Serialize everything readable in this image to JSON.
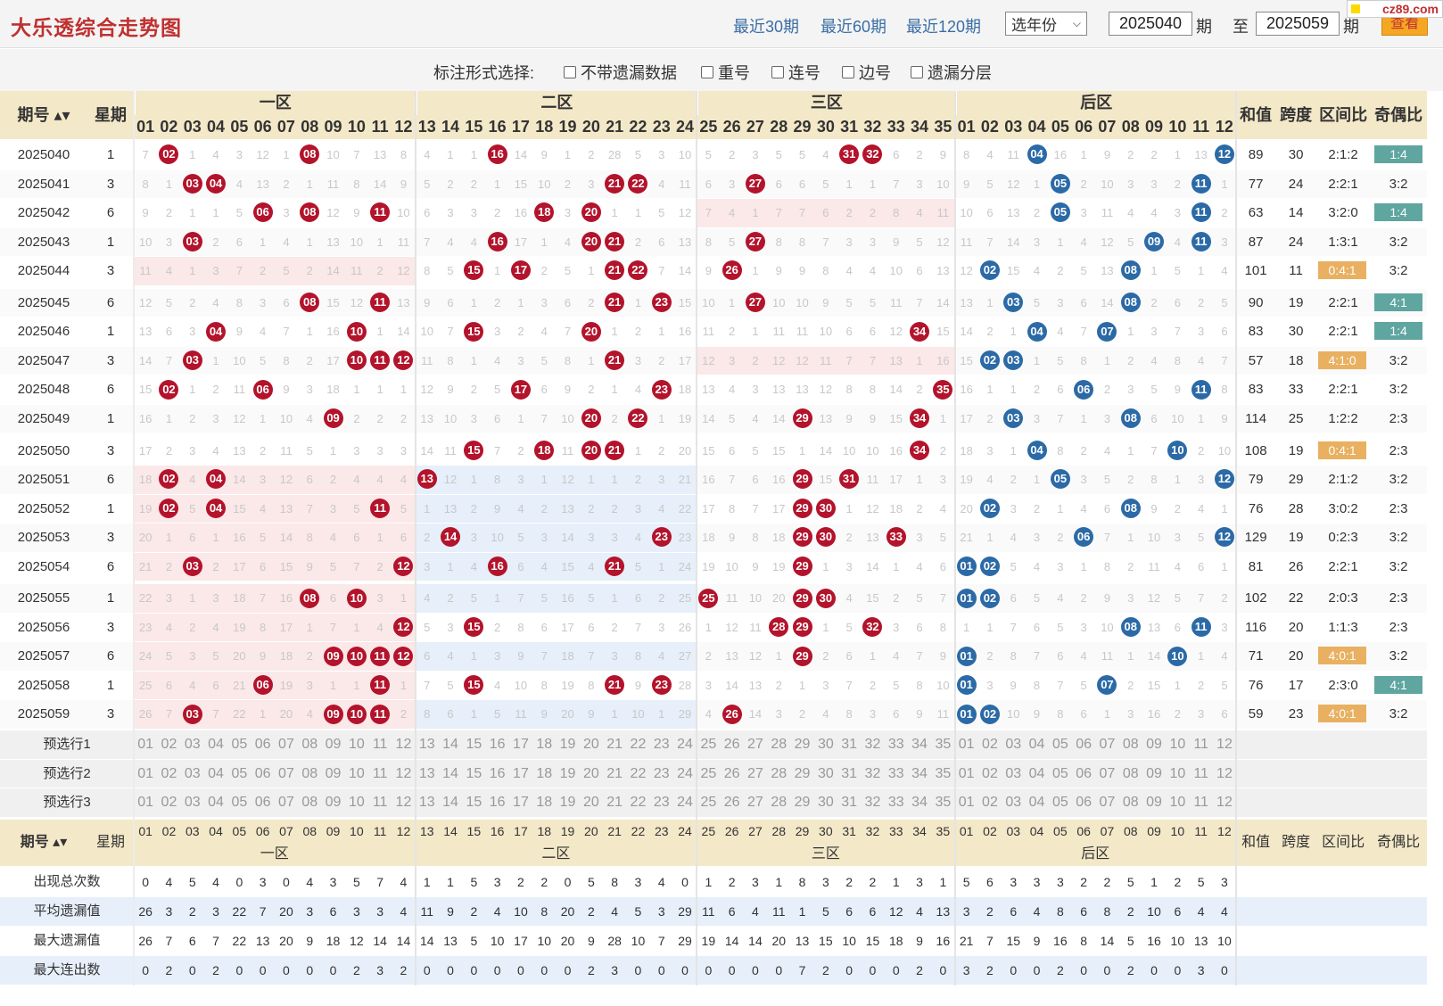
{
  "header": {
    "title": "大乐透综合走势图",
    "quick": [
      "最近30期",
      "最近60期",
      "最近120期"
    ],
    "year_select": "选年份",
    "from_issue": "2025040",
    "to_issue": "2025059",
    "issue_unit": "期",
    "to_label": "至",
    "query_label": "查看",
    "logo": "cz89.com"
  },
  "filters": {
    "label": "标注形式选择:",
    "options": [
      "不带遗漏数据",
      "重号",
      "连号",
      "边号",
      "遗漏分层"
    ]
  },
  "table_headers": {
    "issue": "期号",
    "weekday": "星期",
    "zones": [
      "一区",
      "二区",
      "三区",
      "后区"
    ],
    "sum": "和值",
    "span": "跨度",
    "zone_ratio": "区间比",
    "odd_even": "奇偶比"
  },
  "front_numbers": [
    "01",
    "02",
    "03",
    "04",
    "05",
    "06",
    "07",
    "08",
    "09",
    "10",
    "11",
    "12",
    "13",
    "14",
    "15",
    "16",
    "17",
    "18",
    "19",
    "20",
    "21",
    "22",
    "23",
    "24",
    "25",
    "26",
    "27",
    "28",
    "29",
    "30",
    "31",
    "32",
    "33",
    "34",
    "35"
  ],
  "back_numbers": [
    "01",
    "02",
    "03",
    "04",
    "05",
    "06",
    "07",
    "08",
    "09",
    "10",
    "11",
    "12"
  ],
  "rows": [
    {
      "issue": "2025040",
      "wd": "1",
      "f": [
        7,
        "02",
        1,
        4,
        3,
        12,
        1,
        "08",
        10,
        7,
        13,
        8,
        4,
        1,
        1,
        "16",
        14,
        9,
        1,
        2,
        28,
        5,
        3,
        10,
        5,
        2,
        3,
        5,
        5,
        4,
        "31",
        "32",
        6,
        2,
        9
      ],
      "b": [
        8,
        4,
        11,
        "04",
        16,
        1,
        9,
        2,
        2,
        1,
        13,
        "12"
      ],
      "sum": "89",
      "span": "30",
      "zr": "2:1:2",
      "oe": "1:4",
      "zrc": "",
      "oec": "green"
    },
    {
      "issue": "2025041",
      "wd": "3",
      "f": [
        8,
        1,
        "03",
        "04",
        4,
        13,
        2,
        1,
        11,
        8,
        14,
        9,
        5,
        2,
        2,
        1,
        15,
        10,
        2,
        3,
        "21",
        "22",
        4,
        11,
        6,
        3,
        "27",
        6,
        6,
        5,
        1,
        1,
        7,
        3,
        10
      ],
      "b": [
        9,
        5,
        12,
        1,
        "05",
        2,
        10,
        3,
        3,
        2,
        "11",
        1
      ],
      "sum": "77",
      "span": "24",
      "zr": "2:2:1",
      "oe": "3:2",
      "zrc": "",
      "oec": ""
    },
    {
      "issue": "2025042",
      "wd": "6",
      "f": [
        9,
        2,
        1,
        1,
        5,
        "06",
        3,
        "08",
        12,
        9,
        "11",
        10,
        6,
        3,
        3,
        2,
        16,
        "18",
        3,
        "20",
        1,
        1,
        5,
        12,
        7,
        4,
        1,
        7,
        7,
        6,
        2,
        2,
        8,
        4,
        11
      ],
      "b": [
        10,
        6,
        13,
        2,
        "05",
        3,
        11,
        4,
        4,
        3,
        "11",
        2
      ],
      "sum": "63",
      "span": "14",
      "zr": "3:2:0",
      "oe": "1:4",
      "zrc": "",
      "oec": "green"
    },
    {
      "issue": "2025043",
      "wd": "1",
      "f": [
        10,
        3,
        "03",
        2,
        6,
        1,
        4,
        1,
        13,
        10,
        1,
        11,
        7,
        4,
        4,
        "16",
        17,
        1,
        4,
        "20",
        "21",
        2,
        6,
        13,
        8,
        5,
        "27",
        8,
        8,
        7,
        3,
        3,
        9,
        5,
        12
      ],
      "b": [
        11,
        7,
        14,
        3,
        1,
        4,
        12,
        5,
        "09",
        4,
        "11",
        3
      ],
      "sum": "87",
      "span": "24",
      "zr": "1:3:1",
      "oe": "3:2",
      "zrc": "",
      "oec": ""
    },
    {
      "issue": "2025044",
      "wd": "3",
      "f": [
        11,
        4,
        1,
        3,
        7,
        2,
        5,
        2,
        14,
        11,
        2,
        12,
        8,
        5,
        "15",
        1,
        "17",
        2,
        5,
        1,
        "21",
        "22",
        7,
        14,
        9,
        "26",
        1,
        9,
        9,
        8,
        4,
        4,
        10,
        6,
        13
      ],
      "b": [
        12,
        "02",
        15,
        4,
        2,
        5,
        13,
        "08",
        1,
        5,
        1,
        4
      ],
      "sum": "101",
      "span": "11",
      "zr": "0:4:1",
      "oe": "3:2",
      "zrc": "orange",
      "oec": ""
    },
    {
      "issue": "2025045",
      "wd": "6",
      "f": [
        12,
        5,
        2,
        4,
        8,
        3,
        6,
        "08",
        15,
        12,
        "11",
        13,
        9,
        6,
        1,
        2,
        1,
        3,
        6,
        2,
        "21",
        1,
        "23",
        15,
        10,
        1,
        "27",
        10,
        10,
        9,
        5,
        5,
        11,
        7,
        14
      ],
      "b": [
        13,
        1,
        "03",
        5,
        3,
        6,
        14,
        "08",
        2,
        6,
        2,
        5
      ],
      "sum": "90",
      "span": "19",
      "zr": "2:2:1",
      "oe": "4:1",
      "zrc": "",
      "oec": "green"
    },
    {
      "issue": "2025046",
      "wd": "1",
      "f": [
        13,
        6,
        3,
        "04",
        9,
        4,
        7,
        1,
        16,
        "10",
        1,
        14,
        10,
        7,
        "15",
        3,
        2,
        4,
        7,
        "20",
        1,
        2,
        1,
        16,
        11,
        2,
        1,
        11,
        11,
        10,
        6,
        6,
        12,
        "34",
        15
      ],
      "b": [
        14,
        2,
        1,
        "04",
        4,
        7,
        "07",
        1,
        3,
        7,
        3,
        6
      ],
      "sum": "83",
      "span": "30",
      "zr": "2:2:1",
      "oe": "1:4",
      "zrc": "",
      "oec": "green"
    },
    {
      "issue": "2025047",
      "wd": "3",
      "f": [
        14,
        7,
        "03",
        1,
        10,
        5,
        8,
        2,
        17,
        "10",
        "11",
        "12",
        11,
        8,
        1,
        4,
        3,
        5,
        8,
        1,
        "21",
        3,
        2,
        17,
        12,
        3,
        2,
        12,
        12,
        11,
        7,
        7,
        13,
        1,
        16
      ],
      "b": [
        15,
        "02",
        "03",
        1,
        5,
        8,
        1,
        2,
        4,
        8,
        4,
        7
      ],
      "sum": "57",
      "span": "18",
      "zr": "4:1:0",
      "oe": "3:2",
      "zrc": "orange",
      "oec": ""
    },
    {
      "issue": "2025048",
      "wd": "6",
      "f": [
        15,
        "02",
        1,
        2,
        11,
        "06",
        9,
        3,
        18,
        1,
        1,
        1,
        12,
        9,
        2,
        5,
        "17",
        6,
        9,
        2,
        1,
        4,
        "23",
        18,
        13,
        4,
        3,
        13,
        13,
        12,
        8,
        8,
        14,
        2,
        "35"
      ],
      "b": [
        16,
        1,
        1,
        2,
        6,
        "06",
        2,
        3,
        5,
        9,
        "11",
        8
      ],
      "sum": "83",
      "span": "33",
      "zr": "2:2:1",
      "oe": "3:2",
      "zrc": "",
      "oec": ""
    },
    {
      "issue": "2025049",
      "wd": "1",
      "f": [
        16,
        1,
        2,
        3,
        12,
        1,
        10,
        4,
        "09",
        2,
        2,
        2,
        13,
        10,
        3,
        6,
        1,
        7,
        10,
        "20",
        2,
        "22",
        1,
        19,
        14,
        5,
        4,
        14,
        "29",
        13,
        9,
        9,
        15,
        "34",
        1
      ],
      "b": [
        17,
        2,
        "03",
        3,
        7,
        1,
        3,
        "08",
        6,
        10,
        1,
        9
      ],
      "sum": "114",
      "span": "25",
      "zr": "1:2:2",
      "oe": "2:3",
      "zrc": "",
      "oec": ""
    },
    {
      "issue": "2025050",
      "wd": "3",
      "f": [
        17,
        2,
        3,
        4,
        13,
        2,
        11,
        5,
        1,
        3,
        3,
        3,
        14,
        11,
        "15",
        7,
        2,
        "18",
        11,
        "20",
        "21",
        1,
        2,
        20,
        15,
        6,
        5,
        15,
        1,
        14,
        10,
        10,
        16,
        "34",
        2
      ],
      "b": [
        18,
        3,
        1,
        "04",
        8,
        2,
        4,
        1,
        7,
        "10",
        2,
        10
      ],
      "sum": "108",
      "span": "19",
      "zr": "0:4:1",
      "oe": "2:3",
      "zrc": "orange",
      "oec": ""
    },
    {
      "issue": "2025051",
      "wd": "6",
      "f": [
        18,
        "02",
        4,
        "04",
        14,
        3,
        12,
        6,
        2,
        4,
        4,
        4,
        "13",
        12,
        1,
        8,
        3,
        1,
        12,
        1,
        1,
        2,
        3,
        21,
        16,
        7,
        6,
        16,
        "29",
        15,
        "31",
        11,
        17,
        1,
        3
      ],
      "b": [
        19,
        4,
        2,
        1,
        "05",
        3,
        5,
        2,
        8,
        1,
        3,
        "12"
      ],
      "sum": "79",
      "span": "29",
      "zr": "2:1:2",
      "oe": "3:2",
      "zrc": "",
      "oec": ""
    },
    {
      "issue": "2025052",
      "wd": "1",
      "f": [
        19,
        "02",
        5,
        "04",
        15,
        4,
        13,
        7,
        3,
        5,
        "11",
        5,
        1,
        13,
        2,
        9,
        4,
        2,
        13,
        2,
        2,
        3,
        4,
        22,
        17,
        8,
        7,
        17,
        "29",
        "30",
        1,
        12,
        18,
        2,
        4
      ],
      "b": [
        20,
        "02",
        3,
        2,
        1,
        4,
        6,
        "08",
        9,
        2,
        4,
        1
      ],
      "sum": "76",
      "span": "28",
      "zr": "3:0:2",
      "oe": "2:3",
      "zrc": "",
      "oec": ""
    },
    {
      "issue": "2025053",
      "wd": "3",
      "f": [
        20,
        1,
        6,
        1,
        16,
        5,
        14,
        8,
        4,
        6,
        1,
        6,
        2,
        "14",
        3,
        10,
        5,
        3,
        14,
        3,
        3,
        4,
        "23",
        23,
        18,
        9,
        8,
        18,
        "29",
        "30",
        2,
        13,
        "33",
        3,
        5
      ],
      "b": [
        21,
        1,
        4,
        3,
        2,
        "06",
        7,
        1,
        10,
        3,
        5,
        "12"
      ],
      "sum": "129",
      "span": "19",
      "zr": "0:2:3",
      "oe": "3:2",
      "zrc": "",
      "oec": ""
    },
    {
      "issue": "2025054",
      "wd": "6",
      "f": [
        21,
        2,
        "03",
        2,
        17,
        6,
        15,
        9,
        5,
        7,
        2,
        "12",
        3,
        1,
        4,
        "16",
        6,
        4,
        15,
        4,
        "21",
        5,
        1,
        24,
        19,
        10,
        9,
        19,
        "29",
        1,
        3,
        14,
        1,
        4,
        6
      ],
      "b": [
        "01",
        "02",
        5,
        4,
        3,
        1,
        8,
        2,
        11,
        4,
        6,
        1
      ],
      "sum": "81",
      "span": "26",
      "zr": "2:2:1",
      "oe": "3:2",
      "zrc": "",
      "oec": ""
    },
    {
      "issue": "2025055",
      "wd": "1",
      "f": [
        22,
        3,
        1,
        3,
        18,
        7,
        16,
        "08",
        6,
        "10",
        3,
        1,
        4,
        2,
        5,
        1,
        7,
        5,
        16,
        5,
        1,
        6,
        2,
        25,
        "25",
        11,
        10,
        20,
        "29",
        "30",
        4,
        15,
        2,
        5,
        7
      ],
      "b": [
        "01",
        "02",
        6,
        5,
        4,
        2,
        9,
        3,
        12,
        5,
        7,
        2
      ],
      "sum": "102",
      "span": "22",
      "zr": "2:0:3",
      "oe": "2:3",
      "zrc": "",
      "oec": ""
    },
    {
      "issue": "2025056",
      "wd": "3",
      "f": [
        23,
        4,
        2,
        4,
        19,
        8,
        17,
        1,
        7,
        1,
        4,
        "12",
        5,
        3,
        "15",
        2,
        8,
        6,
        17,
        6,
        2,
        7,
        3,
        26,
        1,
        12,
        11,
        "28",
        "29",
        1,
        5,
        "32",
        3,
        6,
        8
      ],
      "b": [
        1,
        1,
        7,
        6,
        5,
        3,
        10,
        "08",
        13,
        6,
        "11",
        3
      ],
      "sum": "116",
      "span": "20",
      "zr": "1:1:3",
      "oe": "2:3",
      "zrc": "",
      "oec": ""
    },
    {
      "issue": "2025057",
      "wd": "6",
      "f": [
        24,
        5,
        3,
        5,
        20,
        9,
        18,
        2,
        "09",
        "10",
        "11",
        "12",
        6,
        4,
        1,
        3,
        9,
        7,
        18,
        7,
        3,
        8,
        4,
        27,
        2,
        13,
        12,
        1,
        "29",
        2,
        6,
        1,
        4,
        7,
        9
      ],
      "b": [
        "01",
        2,
        8,
        7,
        6,
        4,
        11,
        1,
        14,
        "10",
        1,
        4
      ],
      "sum": "71",
      "span": "20",
      "zr": "4:0:1",
      "oe": "3:2",
      "zrc": "orange",
      "oec": ""
    },
    {
      "issue": "2025058",
      "wd": "1",
      "f": [
        25,
        6,
        4,
        6,
        21,
        "06",
        19,
        3,
        1,
        1,
        "11",
        1,
        7,
        5,
        "15",
        4,
        10,
        8,
        19,
        8,
        "21",
        9,
        "23",
        28,
        3,
        14,
        13,
        2,
        1,
        3,
        7,
        2,
        5,
        8,
        10
      ],
      "b": [
        "01",
        3,
        9,
        8,
        7,
        5,
        "07",
        2,
        15,
        1,
        2,
        5
      ],
      "sum": "76",
      "span": "17",
      "zr": "2:3:0",
      "oe": "4:1",
      "zrc": "",
      "oec": "green"
    },
    {
      "issue": "2025059",
      "wd": "3",
      "f": [
        26,
        7,
        "03",
        7,
        22,
        1,
        20,
        4,
        "09",
        "10",
        "11",
        2,
        8,
        6,
        1,
        5,
        11,
        9,
        20,
        9,
        1,
        10,
        1,
        29,
        4,
        "26",
        14,
        3,
        2,
        4,
        8,
        3,
        6,
        9,
        11
      ],
      "b": [
        "01",
        "02",
        10,
        9,
        8,
        6,
        1,
        3,
        16,
        2,
        3,
        6
      ],
      "sum": "59",
      "span": "23",
      "zr": "4:0:1",
      "oe": "3:2",
      "zrc": "orange",
      "oec": ""
    }
  ],
  "preselect_labels": [
    "预选行1",
    "预选行2",
    "预选行3"
  ],
  "stats": [
    {
      "label": "出现总次数",
      "values": [
        0,
        4,
        5,
        4,
        0,
        3,
        0,
        4,
        3,
        5,
        7,
        4,
        1,
        1,
        5,
        3,
        2,
        2,
        0,
        5,
        8,
        3,
        4,
        0,
        1,
        2,
        3,
        1,
        8,
        3,
        2,
        2,
        1,
        3,
        1,
        5,
        6,
        3,
        3,
        3,
        2,
        2,
        5,
        1,
        2,
        5,
        3
      ]
    },
    {
      "label": "平均遗漏值",
      "values": [
        26,
        3,
        2,
        3,
        22,
        7,
        20,
        3,
        6,
        3,
        3,
        4,
        11,
        9,
        2,
        4,
        10,
        8,
        20,
        2,
        4,
        5,
        3,
        29,
        11,
        6,
        4,
        11,
        1,
        5,
        6,
        6,
        12,
        4,
        13,
        3,
        2,
        6,
        4,
        8,
        6,
        8,
        2,
        10,
        6,
        4,
        4
      ]
    },
    {
      "label": "最大遗漏值",
      "values": [
        26,
        7,
        6,
        7,
        22,
        13,
        20,
        9,
        18,
        12,
        14,
        14,
        14,
        13,
        5,
        10,
        17,
        10,
        20,
        9,
        28,
        10,
        7,
        29,
        19,
        14,
        14,
        20,
        13,
        15,
        10,
        15,
        18,
        9,
        16,
        21,
        7,
        15,
        9,
        16,
        8,
        14,
        5,
        16,
        10,
        13,
        10
      ]
    },
    {
      "label": "最大连出数",
      "values": [
        0,
        2,
        0,
        2,
        0,
        0,
        0,
        0,
        0,
        2,
        3,
        2,
        0,
        0,
        0,
        0,
        0,
        0,
        0,
        2,
        3,
        0,
        0,
        0,
        0,
        0,
        0,
        0,
        7,
        2,
        0,
        0,
        0,
        2,
        0,
        3,
        2,
        0,
        0,
        2,
        0,
        0,
        2,
        0,
        0,
        3,
        0
      ]
    }
  ]
}
